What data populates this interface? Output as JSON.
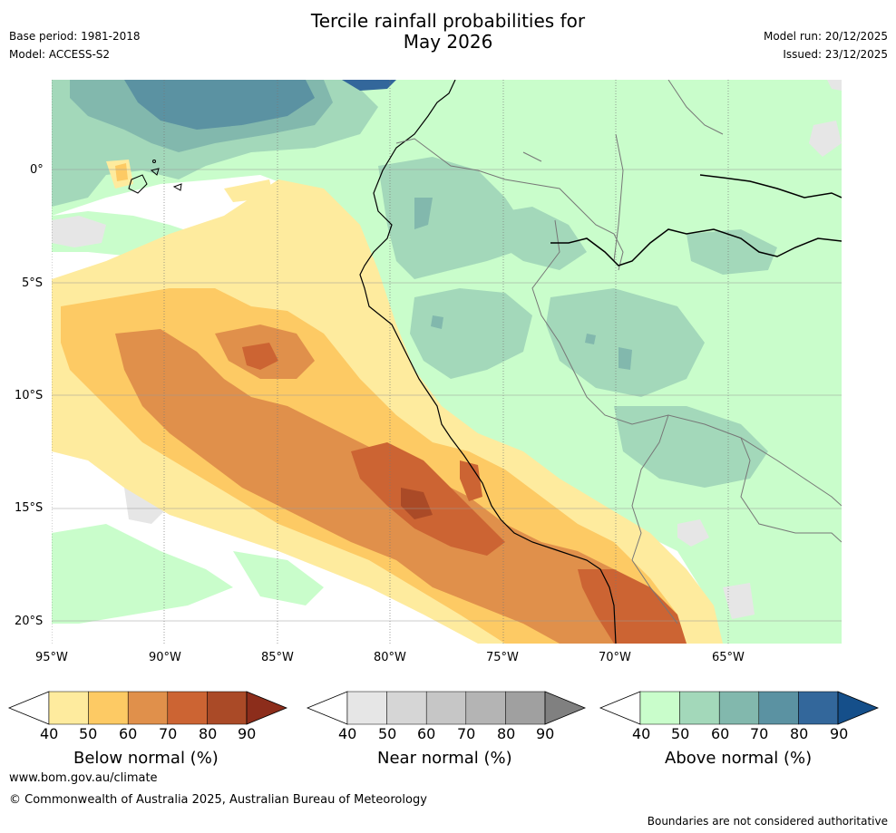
{
  "header": {
    "title_line1": "Tercile rainfall probabilities for",
    "title_line2": "May 2026",
    "base_period": "Base period: 1981-2018",
    "model": "Model: ACCESS-S2",
    "model_run": "Model run: 20/12/2025",
    "issued": "Issued: 23/12/2025"
  },
  "map": {
    "region": "Western South America and adjacent eastern Pacific",
    "lon_ticks": [
      "95°W",
      "90°W",
      "85°W",
      "80°W",
      "75°W",
      "70°W",
      "65°W"
    ],
    "lat_ticks": [
      "0°",
      "5°S",
      "10°S",
      "15°S",
      "20°S"
    ],
    "lon_range": [
      -95,
      -60.2
    ],
    "lat_range": [
      4,
      -21
    ]
  },
  "colorbars": [
    {
      "title": "Below normal (%)",
      "ticks": [
        "40",
        "50",
        "60",
        "70",
        "80",
        "90"
      ],
      "colors": [
        "#ffffff",
        "#feeb9e",
        "#fdca64",
        "#e0904b",
        "#cc6433",
        "#aa4a27",
        "#8c2d1b"
      ]
    },
    {
      "title": "Near normal (%)",
      "ticks": [
        "40",
        "50",
        "60",
        "70",
        "80",
        "90"
      ],
      "colors": [
        "#ffffff",
        "#e6e6e6",
        "#d6d6d6",
        "#c6c6c6",
        "#b4b4b4",
        "#a0a0a0",
        "#808080"
      ]
    },
    {
      "title": "Above normal (%)",
      "ticks": [
        "40",
        "50",
        "60",
        "70",
        "80",
        "90"
      ],
      "colors": [
        "#ffffff",
        "#c9fdcb",
        "#a3d8ba",
        "#82b8ad",
        "#5b92a2",
        "#33679b",
        "#154f8a"
      ]
    }
  ],
  "footer": {
    "url": "www.bom.gov.au/climate",
    "copyright": "© Commonwealth of Australia 2025, Australian Bureau of Meteorology",
    "disclaimer": "Boundaries are not considered authoritative"
  }
}
